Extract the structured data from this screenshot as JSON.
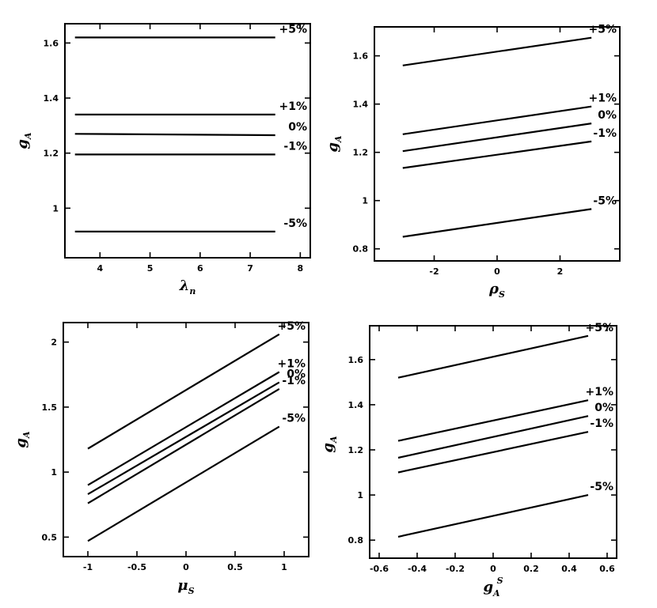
{
  "chart_data": [
    {
      "type": "line",
      "xlabel": "λ",
      "xlabel_sub": "n",
      "ylabel": "g",
      "ylabel_sub": "A",
      "xlim": [
        3.3,
        8.2
      ],
      "ylim": [
        0.82,
        1.67
      ],
      "xticks": [
        4,
        5,
        6,
        7,
        8
      ],
      "yticks": [
        1,
        1.2,
        1.4,
        1.6
      ],
      "ytick_labels": [
        "1",
        "1.2",
        "1.4",
        "1.6"
      ],
      "series": [
        {
          "name": "+5%",
          "x": [
            3.5,
            7.5
          ],
          "y": [
            1.62,
            1.62
          ]
        },
        {
          "name": "+1%",
          "x": [
            3.5,
            7.5
          ],
          "y": [
            1.34,
            1.34
          ]
        },
        {
          "name": "0%",
          "x": [
            3.5,
            7.5
          ],
          "y": [
            1.27,
            1.265
          ]
        },
        {
          "name": "-1%",
          "x": [
            3.5,
            7.5
          ],
          "y": [
            1.195,
            1.195
          ]
        },
        {
          "name": "-5%",
          "x": [
            3.5,
            7.5
          ],
          "y": [
            0.915,
            0.915
          ]
        }
      ],
      "grid": false,
      "legend": "inline-right"
    },
    {
      "type": "line",
      "xlabel": "ρ",
      "xlabel_sub": "S",
      "ylabel": "g",
      "ylabel_sub": "A",
      "xlim": [
        -3.9,
        3.9
      ],
      "ylim": [
        0.75,
        1.72
      ],
      "xticks": [
        -2,
        0,
        2
      ],
      "yticks": [
        0.8,
        1,
        1.2,
        1.4,
        1.6
      ],
      "ytick_labels": [
        "0.8",
        "1",
        "1.2",
        "1.4",
        "1.6"
      ],
      "series": [
        {
          "name": "+5%",
          "x": [
            -3,
            3
          ],
          "y": [
            1.56,
            1.675
          ]
        },
        {
          "name": "+1%",
          "x": [
            -3,
            3
          ],
          "y": [
            1.275,
            1.39
          ]
        },
        {
          "name": "0%",
          "x": [
            -3,
            3
          ],
          "y": [
            1.205,
            1.32
          ]
        },
        {
          "name": "-1%",
          "x": [
            -3,
            3
          ],
          "y": [
            1.135,
            1.245
          ]
        },
        {
          "name": "-5%",
          "x": [
            -3,
            3
          ],
          "y": [
            0.85,
            0.965
          ]
        }
      ],
      "grid": false,
      "legend": "inline-right"
    },
    {
      "type": "line",
      "xlabel": "μ",
      "xlabel_sub": "S",
      "ylabel": "g",
      "ylabel_sub": "A",
      "xlim": [
        -1.25,
        1.25
      ],
      "ylim": [
        0.35,
        2.15
      ],
      "xticks": [
        -1,
        -0.5,
        0,
        0.5,
        1
      ],
      "yticks": [
        0.5,
        1,
        1.5,
        2
      ],
      "ytick_labels": [
        "0.5",
        "1",
        "1.5",
        "2"
      ],
      "series": [
        {
          "name": "+5%",
          "x": [
            -1,
            0.95
          ],
          "y": [
            1.18,
            2.06
          ]
        },
        {
          "name": "+1%",
          "x": [
            -1,
            0.95
          ],
          "y": [
            0.9,
            1.77
          ]
        },
        {
          "name": "0%",
          "x": [
            -1,
            0.95
          ],
          "y": [
            0.83,
            1.69
          ]
        },
        {
          "name": "-1%",
          "x": [
            -1,
            0.95
          ],
          "y": [
            0.76,
            1.64
          ]
        },
        {
          "name": "-5%",
          "x": [
            -1,
            0.95
          ],
          "y": [
            0.47,
            1.35
          ]
        }
      ],
      "grid": false,
      "legend": "inline-right"
    },
    {
      "type": "line",
      "xlabel": "g",
      "xlabel_sub": "A",
      "xlabel_sup": "S",
      "ylabel": "g",
      "ylabel_sub": "A",
      "xlim": [
        -0.65,
        0.65
      ],
      "ylim": [
        0.72,
        1.75
      ],
      "xticks": [
        -0.6,
        -0.4,
        -0.2,
        0,
        0.2,
        0.4,
        0.6
      ],
      "yticks": [
        0.8,
        1,
        1.2,
        1.4,
        1.6
      ],
      "ytick_labels": [
        "0.8",
        "1",
        "1.2",
        "1.4",
        "1.6"
      ],
      "series": [
        {
          "name": "+5%",
          "x": [
            -0.5,
            0.5
          ],
          "y": [
            1.52,
            1.705
          ]
        },
        {
          "name": "+1%",
          "x": [
            -0.5,
            0.5
          ],
          "y": [
            1.24,
            1.42
          ]
        },
        {
          "name": "0%",
          "x": [
            -0.5,
            0.5
          ],
          "y": [
            1.165,
            1.35
          ]
        },
        {
          "name": "-1%",
          "x": [
            -0.5,
            0.5
          ],
          "y": [
            1.1,
            1.28
          ]
        },
        {
          "name": "-5%",
          "x": [
            -0.5,
            0.5
          ],
          "y": [
            0.815,
            1.0
          ]
        }
      ],
      "grid": false,
      "legend": "inline-right"
    }
  ]
}
